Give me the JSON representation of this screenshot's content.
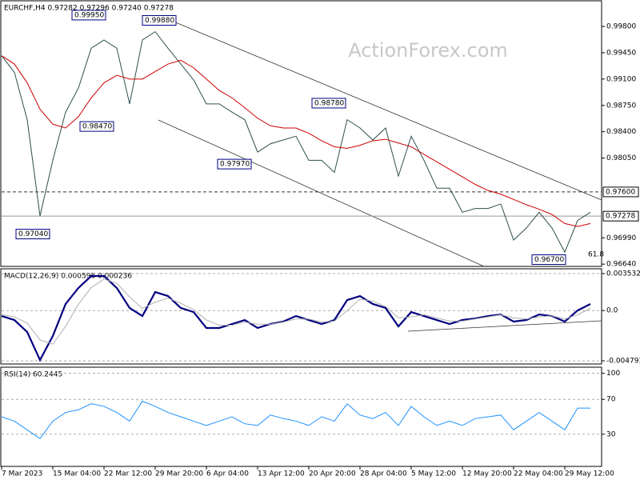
{
  "chart_data": [
    {
      "type": "line",
      "title": "EURCHF,H4 0.97282 0.97296 0.97240 0.97278",
      "watermark": "ActionForex.com",
      "categories": [
        "7 Mar 2023",
        null,
        null,
        null,
        "15 Mar 04:00",
        null,
        null,
        null,
        "22 Mar 12:00",
        null,
        null,
        null,
        "29 Mar 20:00",
        null,
        null,
        null,
        "6 Apr 04:00",
        null,
        null,
        null,
        "13 Apr 12:00",
        null,
        null,
        null,
        "20 Apr 20:00",
        null,
        null,
        null,
        "28 Apr 04:00",
        null,
        null,
        null,
        "5 May 12:00",
        null,
        null,
        null,
        "12 May 20:00",
        null,
        null,
        null,
        "22 May 04:00",
        null,
        null,
        null,
        "29 May 12:00",
        null,
        null
      ],
      "series": [
        {
          "color": "#2f4f4f",
          "values": [
            0.9941,
            0.9919,
            0.9856,
            0.9728,
            0.9802,
            0.9866,
            0.9898,
            0.9951,
            0.9962,
            0.9951,
            0.9877,
            0.9962,
            0.9973,
            0.9951,
            0.993,
            0.9909,
            0.9877,
            0.9877,
            0.9866,
            0.9856,
            0.9813,
            0.9824,
            0.9829,
            0.9834,
            0.9802,
            0.9802,
            0.9786,
            0.9856,
            0.9845,
            0.9829,
            0.9845,
            0.9781,
            0.9834,
            0.9802,
            0.9765,
            0.9765,
            0.9733,
            0.9738,
            0.9738,
            0.9744,
            0.9696,
            0.9712,
            0.9733,
            0.9712,
            0.968,
            0.9722,
            0.9733
          ]
        },
        {
          "color": "#cc0000",
          "values": [
            0.9941,
            0.993,
            0.9905,
            0.987,
            0.985,
            0.9845,
            0.986,
            0.9885,
            0.9905,
            0.9915,
            0.991,
            0.991,
            0.992,
            0.993,
            0.9935,
            0.9925,
            0.991,
            0.9895,
            0.9885,
            0.9872,
            0.9858,
            0.9848,
            0.9845,
            0.9845,
            0.9838,
            0.9828,
            0.982,
            0.9818,
            0.9822,
            0.9828,
            0.983,
            0.9825,
            0.982,
            0.981,
            0.98,
            0.979,
            0.978,
            0.977,
            0.9762,
            0.9757,
            0.975,
            0.9743,
            0.9737,
            0.973,
            0.9718,
            0.9714,
            0.9718
          ]
        }
      ],
      "ylim": [
        0.9661,
        1.0013
      ],
      "yticks": [
        {
          "value": 0.998,
          "label": "0.99800"
        },
        {
          "value": 0.9945,
          "label": "0.99450"
        },
        {
          "value": 0.991,
          "label": "0.99100"
        },
        {
          "value": 0.9875,
          "label": "0.98750"
        },
        {
          "value": 0.984,
          "label": "0.98400"
        },
        {
          "value": 0.9805,
          "label": "0.98050"
        },
        {
          "value": 0.9699,
          "label": "0.96990"
        },
        {
          "value": 0.9664,
          "label": "0.96640"
        }
      ],
      "annotations": [
        {
          "value": 0.9995,
          "label": "0.99950"
        },
        {
          "value": 0.9988,
          "label": "0.99880"
        },
        {
          "value": 0.9847,
          "label": "0.98470"
        },
        {
          "value": 0.9878,
          "label": "0.98780"
        },
        {
          "value": 0.9797,
          "label": "0.97970"
        },
        {
          "value": 0.9704,
          "label": "0.97040"
        },
        {
          "value": 0.967,
          "label": "0.96700"
        }
      ],
      "levels": [
        {
          "value": 0.976,
          "label": "0.97600",
          "style": "dashed"
        },
        {
          "value": 0.97278,
          "label": "0.97278",
          "style": "solid"
        }
      ],
      "note": "61.8"
    },
    {
      "type": "line",
      "title": "MACD(12,26,9) 0.000598 0.000236",
      "series": [
        {
          "color": "#000080",
          "values": [
            -0.00052,
            -0.0009,
            -0.00205,
            -0.00472,
            -0.00243,
            0.00063,
            0.00216,
            0.0033,
            0.0033,
            0.00216,
            0.00025,
            -0.00052,
            0.00177,
            0.00139,
            0.00025,
            -0.00014,
            -0.00166,
            -0.00166,
            -0.00128,
            -0.0009,
            -0.00166,
            -0.00128,
            -0.00105,
            -0.00052,
            -0.0009,
            -0.00128,
            -0.0009,
            0.00101,
            0.00139,
            0.00063,
            0.00025,
            -0.00151,
            -0.00014,
            -0.00052,
            -0.0009,
            -0.00128,
            -0.0009,
            -0.00075,
            -0.00052,
            -0.00037,
            -0.00105,
            -0.0009,
            -0.00037,
            -0.00052,
            -0.00105,
            1e-05,
            0.00063
          ]
        },
        {
          "color": "#b0b0b0",
          "values": [
            -0.0004,
            -0.0006,
            -0.0012,
            -0.0028,
            -0.0032,
            -0.0015,
            0.0006,
            0.0022,
            0.003,
            0.0026,
            0.0013,
            0.0002,
            0.0008,
            0.0012,
            0.0007,
            0.0001,
            -0.0009,
            -0.0014,
            -0.0014,
            -0.0011,
            -0.0013,
            -0.0013,
            -0.0011,
            -0.0008,
            -0.0008,
            -0.0011,
            -0.001,
            0.0,
            0.0011,
            0.0009,
            0.0004,
            -0.0007,
            -0.0006,
            -0.0004,
            -0.0007,
            -0.001,
            -0.001,
            -0.0008,
            -0.0006,
            -0.0004,
            -0.0007,
            -0.0008,
            -0.0006,
            -0.0005,
            -0.0008,
            -0.0004,
            0.0002
          ]
        }
      ],
      "ylim": [
        -0.0051,
        0.00399
      ],
      "yticks": [
        0.003532,
        {
          "value": 0,
          "label": "0.0"
        },
        -0.004793
      ]
    },
    {
      "type": "line",
      "title": "RSI(14) 60.2445",
      "series": [
        {
          "color": "#1e90ff",
          "values": [
            50,
            45,
            35,
            25,
            45,
            55,
            58,
            65,
            62,
            55,
            45,
            68,
            62,
            55,
            50,
            45,
            40,
            45,
            50,
            42,
            40,
            52,
            48,
            45,
            40,
            50,
            45,
            65,
            52,
            48,
            55,
            40,
            62,
            50,
            40,
            45,
            40,
            48,
            50,
            52,
            35,
            45,
            55,
            45,
            35,
            60,
            60
          ]
        }
      ],
      "ylim": [
        -7,
        107
      ],
      "yticks": [
        100,
        70,
        30
      ]
    }
  ]
}
